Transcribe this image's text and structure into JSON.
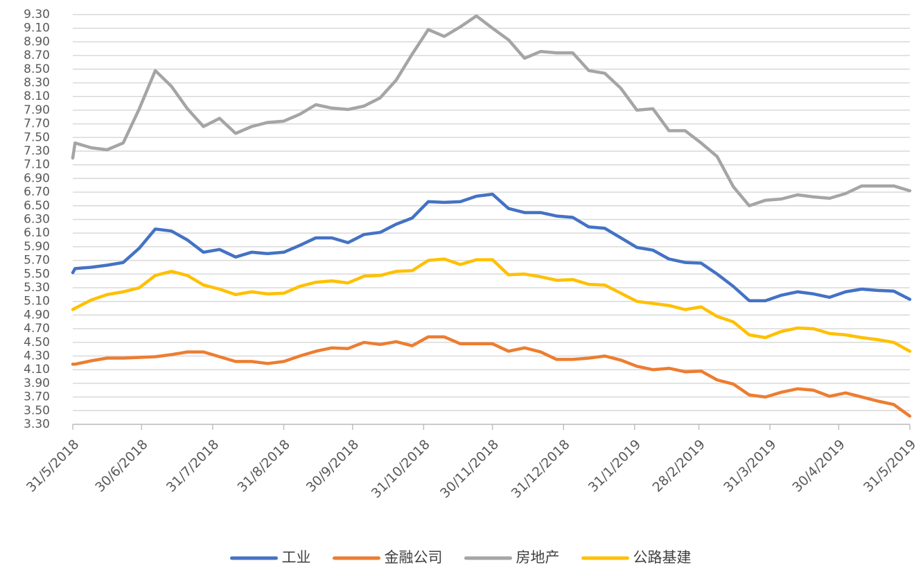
{
  "chart_data": {
    "type": "line",
    "x": [
      "31/5/2018",
      "1/6/2018",
      "8/6/2018",
      "15/6/2018",
      "22/6/2018",
      "29/6/2018",
      "6/7/2018",
      "13/7/2018",
      "20/7/2018",
      "27/7/2018",
      "3/8/2018",
      "10/8/2018",
      "17/8/2018",
      "24/8/2018",
      "31/8/2018",
      "7/9/2018",
      "14/9/2018",
      "21/9/2018",
      "28/9/2018",
      "5/10/2018",
      "12/10/2018",
      "19/10/2018",
      "26/10/2018",
      "2/11/2018",
      "9/11/2018",
      "16/11/2018",
      "23/11/2018",
      "30/11/2018",
      "7/12/2018",
      "14/12/2018",
      "21/12/2018",
      "28/12/2018",
      "4/1/2019",
      "11/1/2019",
      "18/1/2019",
      "25/1/2019",
      "1/2/2019",
      "8/2/2019",
      "15/2/2019",
      "22/2/2019",
      "1/3/2019",
      "8/3/2019",
      "15/3/2019",
      "22/3/2019",
      "29/3/2019",
      "5/4/2019",
      "12/4/2019",
      "19/4/2019",
      "26/4/2019",
      "3/5/2019",
      "10/5/2019",
      "17/5/2019",
      "24/5/2019",
      "31/5/2019"
    ],
    "series": [
      {
        "name": "工业",
        "color": "#4472c4",
        "values": [
          5.52,
          5.58,
          5.6,
          5.63,
          5.67,
          5.88,
          6.16,
          6.13,
          6.0,
          5.82,
          5.86,
          5.75,
          5.82,
          5.8,
          5.82,
          5.92,
          6.03,
          6.03,
          5.96,
          6.08,
          6.11,
          6.23,
          6.32,
          6.56,
          6.55,
          6.56,
          6.64,
          6.67,
          6.46,
          6.4,
          6.4,
          6.35,
          6.33,
          6.19,
          6.17,
          6.03,
          5.89,
          5.85,
          5.72,
          5.67,
          5.66,
          5.5,
          5.32,
          5.11,
          5.11,
          5.19,
          5.24,
          5.21,
          5.16,
          5.24,
          5.28,
          5.26,
          5.25,
          5.13
        ]
      },
      {
        "name": "金融公司",
        "color": "#ed7d31",
        "values": [
          4.18,
          4.18,
          4.23,
          4.27,
          4.27,
          4.28,
          4.29,
          4.32,
          4.36,
          4.36,
          4.29,
          4.22,
          4.22,
          4.19,
          4.22,
          4.3,
          4.37,
          4.42,
          4.41,
          4.5,
          4.47,
          4.51,
          4.45,
          4.58,
          4.58,
          4.48,
          4.48,
          4.48,
          4.37,
          4.42,
          4.36,
          4.25,
          4.25,
          4.27,
          4.3,
          4.24,
          4.15,
          4.1,
          4.12,
          4.07,
          4.08,
          3.95,
          3.89,
          3.73,
          3.7,
          3.77,
          3.82,
          3.8,
          3.71,
          3.76,
          3.7,
          3.64,
          3.59,
          3.42
        ]
      },
      {
        "name": "房地产",
        "color": "#a5a5a5",
        "values": [
          7.2,
          7.42,
          7.35,
          7.32,
          7.42,
          7.92,
          8.48,
          8.25,
          7.92,
          7.66,
          7.78,
          7.56,
          7.66,
          7.72,
          7.74,
          7.84,
          7.98,
          7.93,
          7.91,
          7.96,
          8.08,
          8.34,
          8.72,
          9.08,
          8.98,
          9.12,
          9.28,
          9.1,
          8.93,
          8.66,
          8.76,
          8.74,
          8.74,
          8.48,
          8.44,
          8.22,
          7.9,
          7.92,
          7.6,
          7.6,
          7.42,
          7.22,
          6.78,
          6.5,
          6.58,
          6.6,
          6.66,
          6.63,
          6.61,
          6.68,
          6.79,
          6.79,
          6.79,
          6.72
        ]
      },
      {
        "name": "公路基建",
        "color": "#ffc000",
        "values": [
          4.98,
          5.0,
          5.12,
          5.2,
          5.24,
          5.3,
          5.48,
          5.54,
          5.48,
          5.34,
          5.28,
          5.2,
          5.24,
          5.21,
          5.22,
          5.32,
          5.38,
          5.4,
          5.37,
          5.47,
          5.48,
          5.54,
          5.55,
          5.7,
          5.72,
          5.64,
          5.71,
          5.71,
          5.49,
          5.5,
          5.46,
          5.41,
          5.42,
          5.35,
          5.34,
          5.22,
          5.1,
          5.07,
          5.04,
          4.98,
          5.02,
          4.88,
          4.8,
          4.61,
          4.57,
          4.66,
          4.71,
          4.7,
          4.63,
          4.61,
          4.57,
          4.54,
          4.5,
          4.37
        ]
      }
    ],
    "xlim": [
      "31/5/2018",
      "31/5/2019"
    ],
    "xticks": [
      "31/5/2018",
      "30/6/2018",
      "31/7/2018",
      "31/8/2018",
      "30/9/2018",
      "31/10/2018",
      "30/11/2018",
      "31/12/2018",
      "31/1/2019",
      "28/2/2019",
      "31/3/2019",
      "30/4/2019",
      "31/5/2019"
    ],
    "ylim": [
      3.3,
      9.3
    ],
    "yticks": [
      {
        "value": 3.3,
        "label": "3.30"
      },
      {
        "value": 3.5,
        "label": "3.50"
      },
      {
        "value": 3.7,
        "label": "3.70"
      },
      {
        "value": 3.9,
        "label": "3.90"
      },
      {
        "value": 4.1,
        "label": "4.10"
      },
      {
        "value": 4.3,
        "label": "4.30"
      },
      {
        "value": 4.5,
        "label": "4.50"
      },
      {
        "value": 4.7,
        "label": "4.70"
      },
      {
        "value": 4.9,
        "label": "4.90"
      },
      {
        "value": 5.1,
        "label": "5.10"
      },
      {
        "value": 5.3,
        "label": "5.30"
      },
      {
        "value": 5.5,
        "label": "5.50"
      },
      {
        "value": 5.7,
        "label": "5.70"
      },
      {
        "value": 5.9,
        "label": "5.90"
      },
      {
        "value": 6.1,
        "label": "6.10"
      },
      {
        "value": 6.3,
        "label": "6.30"
      },
      {
        "value": 6.5,
        "label": "6.50"
      },
      {
        "value": 6.7,
        "label": "6.70"
      },
      {
        "value": 6.9,
        "label": "6.90"
      },
      {
        "value": 7.1,
        "label": "7.10"
      },
      {
        "value": 7.3,
        "label": "7.30"
      },
      {
        "value": 7.5,
        "label": "7.50"
      },
      {
        "value": 7.7,
        "label": "7.70"
      },
      {
        "value": 7.9,
        "label": "7.90"
      },
      {
        "value": 8.1,
        "label": "8.10"
      },
      {
        "value": 8.3,
        "label": "8.30"
      },
      {
        "value": 8.5,
        "label": "8.50"
      },
      {
        "value": 8.7,
        "label": "8.70"
      },
      {
        "value": 8.9,
        "label": "8.90"
      },
      {
        "value": 9.1,
        "label": "9.10"
      },
      {
        "value": 9.3,
        "label": "9.30"
      }
    ],
    "grid": true,
    "legend": "bottom"
  }
}
